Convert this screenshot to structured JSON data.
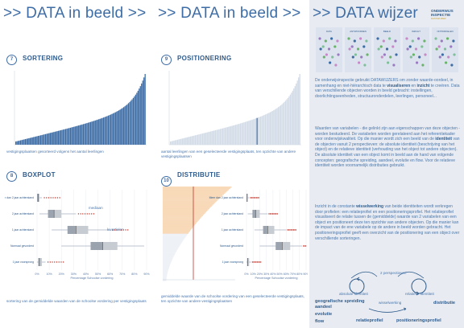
{
  "col1": {
    "header": ">> DATA in beeld >>",
    "sortering": {
      "number": "7",
      "title": "SORTERING",
      "caption": "vestigingsplaatsen gesorteerd volgens het aantal leerlingen"
    },
    "boxplot": {
      "number": "8",
      "title": "BOXPLOT",
      "categories": [
        "Meer dan 2 jaar achterstand",
        "2 jaar achterstand",
        "1 jaar achterstand",
        "Normaal gevorderd",
        "1 jaar voorsprong"
      ],
      "xticks": [
        "0%",
        "10%",
        "20%",
        "30%",
        "40%",
        "50%",
        "60%",
        "70%",
        "80%",
        "90%"
      ],
      "xlabel": "Percentage Schoolse vordering",
      "label_mediaan": "mediaan",
      "label_kwartielen": "kwartielen",
      "caption": "sortering van de gemiddelde waarden van de schoolse vordering per vestigingsplaats"
    }
  },
  "col2": {
    "header": ">> DATA in beeld >>",
    "positionering": {
      "number": "9",
      "title": "POSITIONERING",
      "caption": "aantal leerlingen van een geselecteerde vestigingsplaats, ten opzichte van andere vestigingsplaatsen"
    },
    "distributie": {
      "number": "10",
      "title": "DISTRIBUTIE",
      "categories": [
        "Meer dan 2 jaar achterstand",
        "2 jaar achterstand",
        "1 jaar achterstand",
        "Normaal gevorderd",
        "1 jaar voorsprong"
      ],
      "xticks": [
        "0%",
        "10%",
        "20%",
        "30%",
        "40%",
        "50%",
        "60%",
        "70%",
        "80%",
        "90%"
      ],
      "xlabel": "Percentage Schoolse vordering",
      "caption": "gemiddelde waarde van de schoolse vordering van een geselecteerde vestigingsplaats, ten opzichte van andere vestigingsplaatsen"
    }
  },
  "col3": {
    "header": ">> DATA wijzer",
    "logo_line1": "ONDERWIJS",
    "logo_line2": "INSPECTIE",
    "logo_line3": "DATAWIJZER",
    "strip_labels": [
      "DATA",
      "ANTWOORDEN",
      "BEELD",
      "INZICHT",
      "ONTWIKKELEN"
    ],
    "p1_a": "De onderwijsinspectie gebruikt DATAWIJZERS om zonder waarde-oordeel, in samenhang en niet-hiërarchisch data te ",
    "p1_b1": "visualiseren",
    "p1_and": " en ",
    "p1_b2": "inzicht",
    "p1_c": " te creëren. Data van verschillende objecten worden in beeld gebracht: instellingen, doorlichtingseenheden, structuuronderdelen, leerlingen, personeel...",
    "p2_a": "Waarden van variabelen - die gelinkt zijn aan eigenschappen van deze objecten - worden bestudeerd. De variabelen worden gerelateerd aan het referentiekader voor onderwijskwaliteit. Op die manier wordt zich een beeld van de ",
    "p2_b": "identiteit",
    "p2_c": " van de objecten vanuit 2 perspectieven: de absolute identiteit (beschrijving van het object) en de relatieve identiteit (verhouding van het object tot andere objecten).",
    "p2_d": "De absolute identiteit van een object komt in beeld aan de hand van volgende concepten: geografische spreiding, aandeel, evolutie en flow. Voor de relatieve identiteit worden voornamelijk distributies gebruikt.",
    "p3_a": "Inzicht in de constante ",
    "p3_b": "wisselwerking",
    "p3_c": " van beide identiteiten wordt verkregen door profielen: een relatieprofiel en een positioneringsprofiel. Het relatieprofiel visualiseert de relatie tussen de (gemiddelde) waarde van 2 variabelen van een object en positioneert deze ten opzichte van andere objecten. Op die manier kan de impact van de ene variabele op de andere in beeld worden gebracht. Het positioneringsprofiel geeft een overzicht van de positionering van een object over verschillende sorteringen.",
    "diagram": {
      "perspectieven": "2 perspectieven",
      "absolute": "absolute identiteit",
      "relatieve": "relatieve identiteit",
      "wisselwerking": "wisselwerking",
      "geo": "geografische spreiding",
      "aandeel": "aandeel",
      "evolutie": "evolutie",
      "flow": "flow",
      "distributie": "distributie",
      "relatieprofiel": "relatieprofiel",
      "positioneringsprofiel": "positioneringsprofiel"
    }
  },
  "colors": {
    "dark_blue": "#2f5b8c",
    "bar_blue": "#3e6da6",
    "light_bar": "#ccd6e4",
    "panel_bg": "#e8ecf2",
    "accent_orange": "#f1b37a",
    "accent_red": "#c2342a"
  }
}
